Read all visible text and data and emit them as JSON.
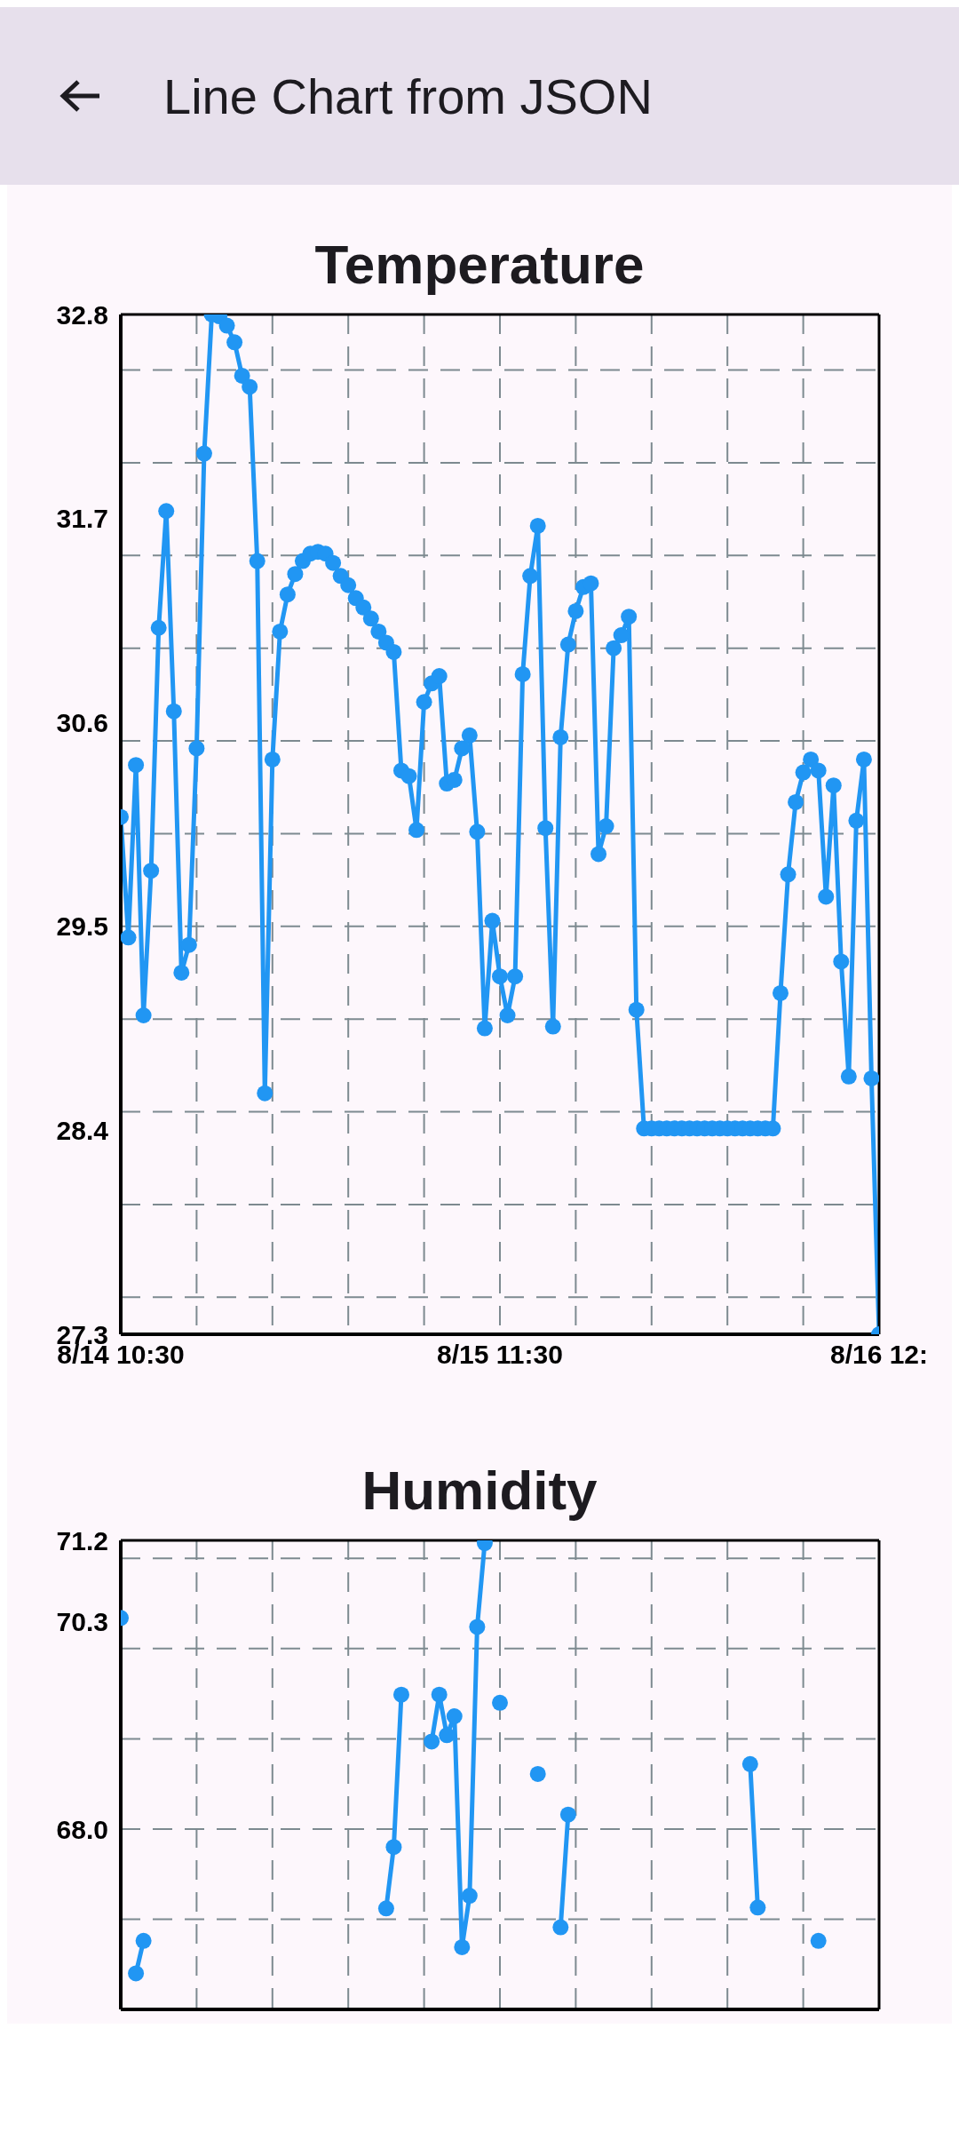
{
  "chart_data": [
    {
      "type": "line",
      "title": "Temperature",
      "annotations": [
        "Line Chart from JSON"
      ],
      "color": "#2196f3",
      "marker": "circle",
      "line_style": "solid",
      "grid": true,
      "x": [
        "--08-14T10:30",
        "--08-14T11:00",
        "--08-14T11:30",
        "--08-14T12:00",
        "--08-14T12:30",
        "--08-14T13:00",
        "--08-14T13:30",
        "--08-14T14:00",
        "--08-14T14:30",
        "--08-14T15:00",
        "--08-14T15:30",
        "--08-14T16:00",
        "--08-14T16:30",
        "--08-14T17:00",
        "--08-14T17:30",
        "--08-14T18:00",
        "--08-14T18:30",
        "--08-14T19:00",
        "--08-14T19:30",
        "--08-14T20:00",
        "--08-14T20:30",
        "--08-14T21:00",
        "--08-14T21:30",
        "--08-14T22:00",
        "--08-14T22:30",
        "--08-14T23:00",
        "--08-14T23:30",
        "--08-15T00:00",
        "--08-15T00:30",
        "--08-15T01:00",
        "--08-15T01:30",
        "--08-15T02:00",
        "--08-15T02:30",
        "--08-15T03:00",
        "--08-15T03:30",
        "--08-15T04:00",
        "--08-15T04:30",
        "--08-15T05:00",
        "--08-15T05:30",
        "--08-15T06:00",
        "--08-15T06:30",
        "--08-15T07:00",
        "--08-15T07:30",
        "--08-15T08:00",
        "--08-15T08:30",
        "--08-15T09:00",
        "--08-15T09:30",
        "--08-15T10:00",
        "--08-15T10:30",
        "--08-15T11:00",
        "--08-15T11:30",
        "--08-15T12:00",
        "--08-15T12:30",
        "--08-15T13:00",
        "--08-15T13:30",
        "--08-15T14:00",
        "--08-15T14:30",
        "--08-15T15:00",
        "--08-15T15:30",
        "--08-15T16:00",
        "--08-15T16:30",
        "--08-15T17:00",
        "--08-15T17:30",
        "--08-15T18:00",
        "--08-15T18:30",
        "--08-15T19:00",
        "--08-15T19:30",
        "--08-15T20:00",
        "--08-15T20:30",
        "--08-15T21:00",
        "--08-15T21:30",
        "--08-15T22:00",
        "--08-15T22:30",
        "--08-15T23:00",
        "--08-15T23:30",
        "--08-16T00:00",
        "--08-16T00:30",
        "--08-16T01:00",
        "--08-16T01:30",
        "--08-16T02:00",
        "--08-16T02:30",
        "--08-16T03:00",
        "--08-16T03:30",
        "--08-16T04:00",
        "--08-16T04:30",
        "--08-16T05:00",
        "--08-16T05:30",
        "--08-16T06:00",
        "--08-16T06:30",
        "--08-16T07:00",
        "--08-16T07:30",
        "--08-16T08:00",
        "--08-16T08:30",
        "--08-16T09:00",
        "--08-16T09:30",
        "--08-16T10:00",
        "--08-16T10:30",
        "--08-16T11:00",
        "--08-16T11:30",
        "--08-16T12:00",
        "--08-16T12:30"
      ],
      "values": [
        30.09,
        29.44,
        30.37,
        29.02,
        29.8,
        31.11,
        31.74,
        30.66,
        29.25,
        29.4,
        30.46,
        32.05,
        32.8,
        32.79,
        32.74,
        32.65,
        32.47,
        32.41,
        31.47,
        28.6,
        30.4,
        31.09,
        31.29,
        31.4,
        31.47,
        31.51,
        31.52,
        31.51,
        31.46,
        31.39,
        31.34,
        31.27,
        31.22,
        31.16,
        31.09,
        31.03,
        30.98,
        30.34,
        30.31,
        30.02,
        30.71,
        30.81,
        30.85,
        30.27,
        30.29,
        30.46,
        30.53,
        30.01,
        28.95,
        29.53,
        29.23,
        29.02,
        29.23,
        30.86,
        31.39,
        31.66,
        30.03,
        28.96,
        30.52,
        31.02,
        31.2,
        31.33,
        31.35,
        29.89,
        30.04,
        31.0,
        31.07,
        31.17,
        29.05,
        28.41,
        28.41,
        28.41,
        28.41,
        28.41,
        28.41,
        28.41,
        28.41,
        28.41,
        28.41,
        28.41,
        28.41,
        28.41,
        28.41,
        28.41,
        28.41,
        28.41,
        28.41,
        29.14,
        29.78,
        30.17,
        30.33,
        30.4,
        30.34,
        29.66,
        30.26,
        29.31,
        28.69,
        30.07,
        30.4,
        28.68,
        27.3
      ],
      "xlim": [
        "--08-14T10:30",
        "--08-16T12:30"
      ],
      "xticks": [
        {
          "value": "--08-14T10:30",
          "label": "8/14 10:30"
        },
        {
          "value": "--08-14T15:30",
          "label": null
        },
        {
          "value": "--08-14T20:30",
          "label": null
        },
        {
          "value": "--08-15T01:30",
          "label": null
        },
        {
          "value": "--08-15T06:30",
          "label": null
        },
        {
          "value": "--08-15T11:30",
          "label": "8/15 11:30"
        },
        {
          "value": "--08-15T16:30",
          "label": null
        },
        {
          "value": "--08-15T21:30",
          "label": null
        },
        {
          "value": "--08-16T02:30",
          "label": null
        },
        {
          "value": "--08-16T07:30",
          "label": null
        },
        {
          "value": "--08-16T12:30",
          "label": "8/16 12:"
        }
      ],
      "ylim": [
        27.3,
        32.8
      ],
      "yticks": [
        27.3,
        {
          "value": 27.5,
          "label": null
        },
        {
          "value": 28,
          "label": null
        },
        28.4,
        {
          "value": 28.5,
          "label": null
        },
        {
          "value": 29,
          "label": null
        },
        {
          "value": 29.5,
          "label": "29.5"
        },
        {
          "value": 30,
          "label": null
        },
        {
          "value": 30.5,
          "label": null
        },
        30.6,
        {
          "value": 31,
          "label": null
        },
        {
          "value": 31.5,
          "label": null
        },
        31.7,
        {
          "value": 32,
          "label": null
        },
        {
          "value": 32.5,
          "label": null
        },
        32.8
      ]
    },
    {
      "type": "line",
      "title": "Humidity",
      "color": "#2196f3",
      "marker": "circle",
      "line_style": "solid",
      "grid": true,
      "tick_labels": "y",
      "x": [
        "--08-14T10:30",
        "--08-14T11:00",
        "--08-14T11:30",
        "--08-14T12:00",
        "--08-14T12:30",
        "--08-14T13:00",
        "--08-14T13:30",
        "--08-14T14:00",
        "--08-14T14:30",
        "--08-14T15:00",
        "--08-14T15:30",
        "--08-14T16:00",
        "--08-14T16:30",
        "--08-14T17:00",
        "--08-14T17:30",
        "--08-14T18:00",
        "--08-14T18:30",
        "--08-14T19:00",
        "--08-14T19:30",
        "--08-14T20:00",
        "--08-14T20:30",
        "--08-14T21:00",
        "--08-14T21:30",
        "--08-14T22:00",
        "--08-14T22:30",
        "--08-14T23:00",
        "--08-14T23:30",
        "--08-15T00:00",
        "--08-15T00:30",
        "--08-15T01:00",
        "--08-15T01:30",
        "--08-15T02:00",
        "--08-15T02:30",
        "--08-15T03:00",
        "--08-15T03:30",
        "--08-15T04:00",
        "--08-15T04:30",
        "--08-15T05:00",
        "--08-15T05:30",
        "--08-15T06:00",
        "--08-15T06:30",
        "--08-15T07:00",
        "--08-15T07:30",
        "--08-15T08:00",
        "--08-15T08:30",
        "--08-15T09:00",
        "--08-15T09:30",
        "--08-15T10:00",
        "--08-15T10:30",
        "--08-15T11:00",
        "--08-15T11:30",
        "--08-15T12:00",
        "--08-15T12:30",
        "--08-15T13:00",
        "--08-15T13:30",
        "--08-15T14:00",
        "--08-15T14:30",
        "--08-15T15:00",
        "--08-15T15:30",
        "--08-15T16:00",
        "--08-15T16:30",
        "--08-15T17:00",
        "--08-15T17:30",
        "--08-15T18:00",
        "--08-15T18:30",
        "--08-15T19:00",
        "--08-15T19:30",
        "--08-15T20:00",
        "--08-15T20:30",
        "--08-15T21:00",
        "--08-15T21:30",
        "--08-15T22:00",
        "--08-15T22:30",
        "--08-15T23:00",
        "--08-15T23:30",
        "--08-16T00:00",
        "--08-16T00:30",
        "--08-16T01:00",
        "--08-16T01:30",
        "--08-16T02:00",
        "--08-16T02:30",
        "--08-16T03:00",
        "--08-16T03:30",
        "--08-16T04:00",
        "--08-16T04:30",
        "--08-16T05:00",
        "--08-16T05:30",
        "--08-16T06:00",
        "--08-16T06:30",
        "--08-16T07:00",
        "--08-16T07:30",
        "--08-16T08:00",
        "--08-16T08:30"
      ],
      "values": [
        70.34,
        null,
        66.4,
        66.76,
        null,
        null,
        null,
        null,
        null,
        null,
        null,
        null,
        null,
        null,
        null,
        null,
        null,
        null,
        null,
        null,
        null,
        null,
        null,
        null,
        null,
        null,
        null,
        null,
        null,
        null,
        null,
        null,
        null,
        null,
        null,
        67.12,
        67.8,
        69.49,
        null,
        null,
        null,
        68.97,
        69.49,
        69.04,
        69.25,
        66.69,
        67.26,
        70.24,
        71.17,
        null,
        69.4,
        null,
        null,
        null,
        null,
        68.61,
        null,
        null,
        66.91,
        68.16,
        null,
        null,
        null,
        null,
        null,
        null,
        null,
        null,
        null,
        null,
        null,
        null,
        null,
        null,
        null,
        null,
        null,
        null,
        null,
        null,
        null,
        null,
        null,
        68.72,
        67.13,
        null,
        null,
        null,
        null,
        null,
        null,
        null,
        66.76
      ],
      "xlim": [
        "--08-14T10:30",
        "--08-16T12:30"
      ],
      "xticks": [
        {
          "value": "--08-14T15:30",
          "label": null
        },
        {
          "value": "--08-14T20:30",
          "label": null
        },
        {
          "value": "--08-15T01:30",
          "label": null
        },
        {
          "value": "--08-15T06:30",
          "label": null
        },
        {
          "value": "--08-15T11:30",
          "label": null
        },
        {
          "value": "--08-15T16:30",
          "label": null
        },
        {
          "value": "--08-15T21:30",
          "label": null
        },
        {
          "value": "--08-16T02:30",
          "label": null
        },
        {
          "value": "--08-16T07:30",
          "label": null
        }
      ],
      "ylim": [
        66,
        71.2
      ],
      "yticks": [
        {
          "value": 67,
          "label": null
        },
        {
          "value": 68,
          "label": "68.0"
        },
        {
          "value": 69,
          "label": null
        },
        {
          "value": 70,
          "label": null
        },
        70.3,
        {
          "value": 71,
          "label": null
        },
        71.2
      ]
    }
  ]
}
